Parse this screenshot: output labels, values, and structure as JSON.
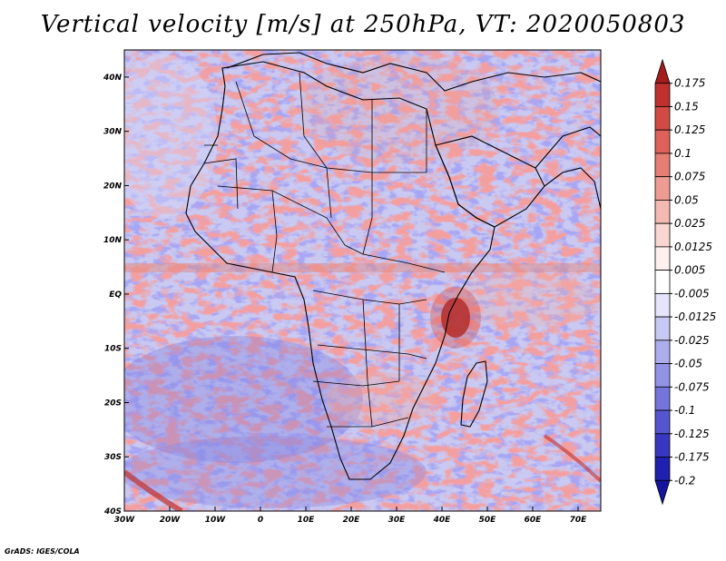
{
  "title": "Vertical velocity [m/s] at 250hPa, VT: 2020050803",
  "footer": "GrADS: IGES/COLA",
  "map": {
    "lon_range": [
      -30,
      75
    ],
    "lat_range": [
      -40,
      45
    ],
    "lon_ticks": [
      "30W",
      "20W",
      "10W",
      "0",
      "10E",
      "20E",
      "30E",
      "40E",
      "50E",
      "60E",
      "70E"
    ],
    "lat_ticks": [
      "40S",
      "30S",
      "20S",
      "10S",
      "EQ",
      "10N",
      "20N",
      "30N",
      "40N"
    ]
  },
  "colorbar": {
    "labels": [
      "0.175",
      "0.15",
      "0.125",
      "0.1",
      "0.075",
      "0.05",
      "0.025",
      "0.0125",
      "0.005",
      "-0.005",
      "-0.0125",
      "-0.025",
      "-0.05",
      "-0.075",
      "-0.1",
      "-0.125",
      "-0.175",
      "-0.2"
    ],
    "colors": [
      "#a51c1c",
      "#c0302e",
      "#d24a44",
      "#de625a",
      "#e67e74",
      "#ee9c93",
      "#f4bab2",
      "#f9d6d1",
      "#fdf0ee",
      "#ffffff",
      "#e4e4fb",
      "#c8c8f4",
      "#adadee",
      "#9292e6",
      "#7474dc",
      "#5555d0",
      "#3737c2",
      "#2020b0",
      "#14149e"
    ]
  }
}
